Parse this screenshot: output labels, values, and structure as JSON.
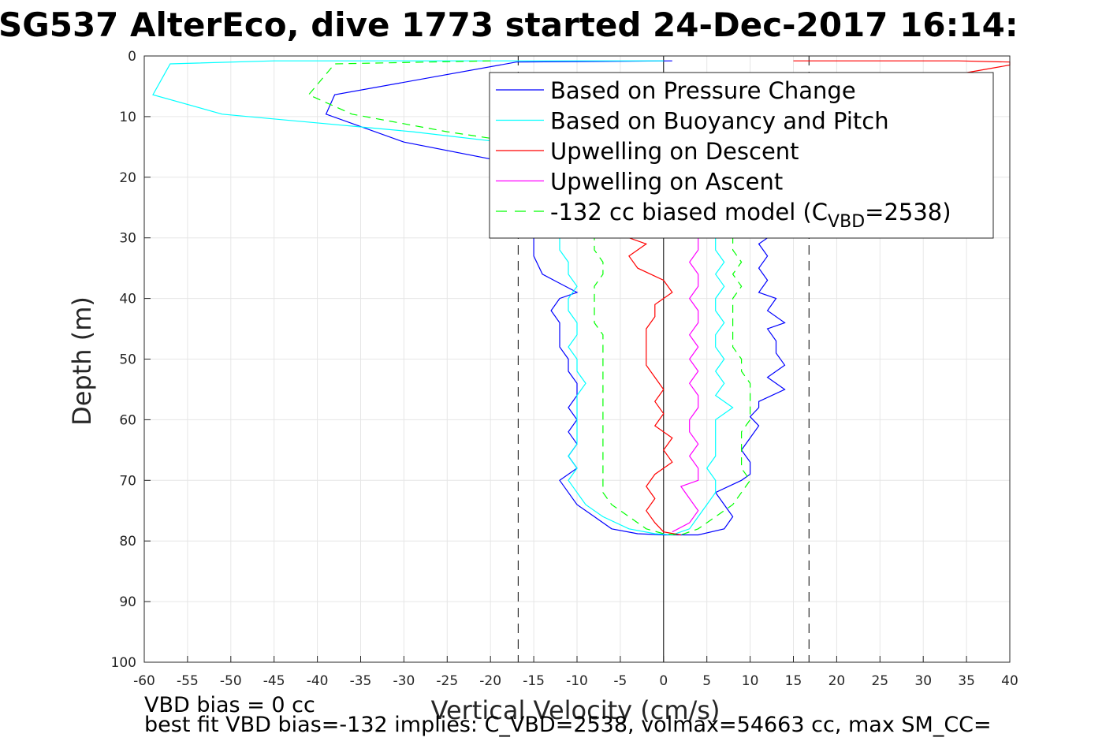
{
  "chart_data": {
    "type": "line",
    "title": "SG537 AlterEco, dive 1773 started 24-Dec-2017 16:14:",
    "xlabel": "Vertical Velocity (cm/s)",
    "ylabel": "Depth (m)",
    "xlim": [
      -60,
      40
    ],
    "ylim": [
      0,
      100
    ],
    "y_reversed": true,
    "grid": true,
    "legend_position": "top-right",
    "x_ticks": [
      "-60",
      "-55",
      "-50",
      "-45",
      "-40",
      "-35",
      "-30",
      "-25",
      "-20",
      "-15",
      "-10",
      "-5",
      "0",
      "5",
      "10",
      "15",
      "20",
      "25",
      "30",
      "35",
      "40"
    ],
    "y_ticks": [
      "0",
      "10",
      "20",
      "30",
      "40",
      "50",
      "60",
      "70",
      "80",
      "90",
      "100"
    ],
    "reference_lines": [
      {
        "axis": "x",
        "value": -16.8,
        "style": "dashed",
        "color": "#000000"
      },
      {
        "axis": "x",
        "value": 0,
        "style": "solid",
        "color": "#000000"
      },
      {
        "axis": "x",
        "value": 16.8,
        "style": "dashed",
        "color": "#000000"
      }
    ],
    "series": [
      {
        "name": "Based on Pressure Change",
        "color": "#0000ff",
        "dash": false,
        "points": [
          [
            1,
            0.8
          ],
          [
            -17,
            1
          ],
          [
            -38,
            6.4
          ],
          [
            -39,
            9.6
          ],
          [
            -30,
            14.2
          ],
          [
            -20,
            17
          ],
          [
            -17,
            22
          ],
          [
            -16,
            26
          ],
          [
            -15,
            30
          ],
          [
            -15,
            33
          ],
          [
            -14,
            36
          ],
          [
            -12,
            37.5
          ],
          [
            -10,
            39
          ],
          [
            -12,
            40
          ],
          [
            -13,
            42
          ],
          [
            -12,
            44
          ],
          [
            -12,
            46
          ],
          [
            -12,
            48
          ],
          [
            -11,
            50
          ],
          [
            -11,
            52
          ],
          [
            -10,
            54
          ],
          [
            -10,
            56
          ],
          [
            -11,
            58
          ],
          [
            -10,
            60
          ],
          [
            -11,
            62
          ],
          [
            -10,
            64
          ],
          [
            -11,
            66
          ],
          [
            -10,
            68
          ],
          [
            -12,
            70
          ],
          [
            -11,
            72
          ],
          [
            -10,
            74
          ],
          [
            -8,
            76
          ],
          [
            -6,
            78
          ],
          [
            -3,
            78.8
          ],
          [
            0,
            79
          ],
          [
            4,
            79
          ],
          [
            7,
            78
          ],
          [
            8,
            76
          ],
          [
            7,
            74
          ],
          [
            6,
            72
          ],
          [
            9,
            70
          ],
          [
            10,
            69
          ],
          [
            10,
            67
          ],
          [
            9,
            65
          ],
          [
            10,
            63
          ],
          [
            11,
            61
          ],
          [
            10,
            59.5
          ],
          [
            11,
            58
          ],
          [
            11,
            57
          ],
          [
            14,
            55
          ],
          [
            12,
            53
          ],
          [
            14,
            51
          ],
          [
            13,
            49
          ],
          [
            13,
            47
          ],
          [
            12,
            45
          ],
          [
            14,
            44
          ],
          [
            12,
            42
          ],
          [
            13,
            40
          ],
          [
            11,
            39
          ],
          [
            12,
            37
          ],
          [
            11,
            35
          ],
          [
            12,
            33
          ],
          [
            11,
            31
          ],
          [
            12,
            30
          ]
        ]
      },
      {
        "name": "Based on Buoyancy and Pitch",
        "color": "#00ffff",
        "dash": false,
        "points": [
          [
            0,
            0.8
          ],
          [
            -45,
            0.8
          ],
          [
            -57,
            1.3
          ],
          [
            -59,
            6.4
          ],
          [
            -51,
            9.6
          ],
          [
            -29,
            12.5
          ],
          [
            -20,
            14
          ],
          [
            -16,
            18
          ],
          [
            -14,
            22
          ],
          [
            -13,
            26
          ],
          [
            -12,
            30
          ],
          [
            -12,
            32
          ],
          [
            -11,
            34
          ],
          [
            -11,
            36
          ],
          [
            -10,
            38
          ],
          [
            -11,
            40
          ],
          [
            -11,
            42
          ],
          [
            -10,
            44
          ],
          [
            -10,
            46
          ],
          [
            -11,
            48
          ],
          [
            -10,
            50
          ],
          [
            -10,
            52
          ],
          [
            -9,
            54
          ],
          [
            -10,
            56
          ],
          [
            -10,
            58
          ],
          [
            -10,
            60
          ],
          [
            -10,
            62
          ],
          [
            -10,
            64
          ],
          [
            -11,
            66
          ],
          [
            -10,
            68
          ],
          [
            -11,
            70
          ],
          [
            -10,
            72
          ],
          [
            -9,
            74
          ],
          [
            -7,
            76
          ],
          [
            -4,
            78
          ],
          [
            -1,
            78.8
          ],
          [
            1,
            79
          ],
          [
            3,
            78
          ],
          [
            4,
            76
          ],
          [
            5,
            74
          ],
          [
            6,
            72
          ],
          [
            6,
            70
          ],
          [
            5,
            68
          ],
          [
            6,
            66
          ],
          [
            6,
            64
          ],
          [
            6,
            62
          ],
          [
            6,
            60
          ],
          [
            8,
            58
          ],
          [
            6,
            56
          ],
          [
            7,
            54
          ],
          [
            6,
            52
          ],
          [
            7,
            50
          ],
          [
            6,
            48
          ],
          [
            6,
            46
          ],
          [
            7,
            44
          ],
          [
            6,
            42
          ],
          [
            6,
            40
          ],
          [
            7,
            38
          ],
          [
            6,
            36
          ],
          [
            7,
            34
          ],
          [
            6,
            32
          ],
          [
            6,
            30
          ]
        ]
      },
      {
        "name": "Upwelling on Descent",
        "color": "#ff0000",
        "dash": false,
        "points": [
          [
            15,
            0.8
          ],
          [
            34,
            0.8
          ],
          [
            40,
            1
          ],
          [
            40,
            1.5
          ],
          [
            34,
            3
          ],
          [
            20,
            18
          ],
          [
            5,
            26
          ],
          [
            -4,
            30
          ],
          [
            -2,
            31
          ],
          [
            -4,
            33
          ],
          [
            -3,
            35
          ],
          [
            0,
            37
          ],
          [
            1,
            39
          ],
          [
            -1,
            41
          ],
          [
            -1,
            43
          ],
          [
            -2,
            45
          ],
          [
            -2,
            47
          ],
          [
            -2,
            49
          ],
          [
            -2,
            51
          ],
          [
            -1,
            53
          ],
          [
            0,
            55
          ],
          [
            -1,
            57
          ],
          [
            0,
            59
          ],
          [
            -1,
            61
          ],
          [
            1,
            63
          ],
          [
            0,
            65
          ],
          [
            1,
            67
          ],
          [
            -1,
            69
          ],
          [
            -2,
            71
          ],
          [
            -1,
            73
          ],
          [
            -2,
            75
          ],
          [
            -1,
            77
          ],
          [
            0,
            78.5
          ],
          [
            2,
            79
          ]
        ]
      },
      {
        "name": "Upwelling on Ascent",
        "color": "#ff00ff",
        "dash": false,
        "points": [
          [
            1,
            78.5
          ],
          [
            3,
            77
          ],
          [
            4,
            75
          ],
          [
            3,
            73
          ],
          [
            2,
            71
          ],
          [
            4,
            70
          ],
          [
            4,
            68
          ],
          [
            3,
            66
          ],
          [
            4,
            64
          ],
          [
            3,
            62
          ],
          [
            3,
            60
          ],
          [
            4,
            58
          ],
          [
            4,
            56
          ],
          [
            3,
            54
          ],
          [
            4,
            52
          ],
          [
            3,
            50
          ],
          [
            4,
            48
          ],
          [
            3,
            46
          ],
          [
            4,
            44
          ],
          [
            4,
            42
          ],
          [
            3,
            40
          ],
          [
            4,
            38
          ],
          [
            4,
            36
          ],
          [
            3,
            34
          ],
          [
            4,
            32
          ],
          [
            4,
            30
          ]
        ]
      },
      {
        "name": "-132 cc biased model (C_VBD=2538)",
        "color": "#00ff00",
        "dash": true,
        "points": [
          [
            -20,
            0.8
          ],
          [
            -38,
            1.3
          ],
          [
            -41,
            6.4
          ],
          [
            -36,
            9.6
          ],
          [
            -25,
            12.5
          ],
          [
            -18,
            14
          ],
          [
            -13,
            17
          ],
          [
            -11,
            20
          ],
          [
            -9,
            24
          ],
          [
            -8,
            28
          ],
          [
            -8,
            30
          ],
          [
            -8,
            32
          ],
          [
            -7,
            34
          ],
          [
            -7,
            36
          ],
          [
            -8,
            38
          ],
          [
            -8,
            40
          ],
          [
            -8,
            42
          ],
          [
            -8,
            44
          ],
          [
            -7,
            46
          ],
          [
            -7,
            48
          ],
          [
            -7,
            50
          ],
          [
            -7,
            52
          ],
          [
            -7,
            54
          ],
          [
            -7,
            56
          ],
          [
            -7,
            58
          ],
          [
            -7,
            60
          ],
          [
            -7,
            62
          ],
          [
            -7,
            64
          ],
          [
            -7,
            66
          ],
          [
            -7,
            68
          ],
          [
            -7,
            70
          ],
          [
            -7,
            72
          ],
          [
            -6,
            74
          ],
          [
            -4,
            76
          ],
          [
            -2,
            78
          ],
          [
            0,
            78.8
          ],
          [
            2,
            79
          ],
          [
            4,
            78
          ],
          [
            6,
            76
          ],
          [
            8,
            74
          ],
          [
            9,
            72
          ],
          [
            10,
            70
          ],
          [
            9,
            68
          ],
          [
            9,
            66
          ],
          [
            9,
            64
          ],
          [
            9,
            62
          ],
          [
            10,
            60
          ],
          [
            10,
            58
          ],
          [
            10,
            56
          ],
          [
            10,
            54
          ],
          [
            9,
            52
          ],
          [
            9,
            50
          ],
          [
            8,
            48
          ],
          [
            8,
            46
          ],
          [
            8,
            44
          ],
          [
            8,
            42
          ],
          [
            8,
            40
          ],
          [
            9,
            38
          ],
          [
            8,
            36
          ],
          [
            9,
            34
          ],
          [
            8,
            32
          ],
          [
            8,
            30
          ]
        ]
      }
    ]
  },
  "legend": {
    "entries": [
      {
        "label": "Based on Pressure Change",
        "color": "#0000ff",
        "dash": false
      },
      {
        "label": "Based on Buoyancy and Pitch",
        "color": "#00ffff",
        "dash": false
      },
      {
        "label": "Upwelling on Descent",
        "color": "#ff0000",
        "dash": false
      },
      {
        "label": "Upwelling on Ascent",
        "color": "#ff00ff",
        "dash": false
      },
      {
        "label": "-132 cc biased model (C",
        "sub": "VBD",
        "suffix": "=2538)",
        "color": "#00ff00",
        "dash": true
      }
    ]
  },
  "notes": {
    "line1": "VBD bias = 0 cc",
    "line2": "best fit VBD bias=-132 implies: C_VBD=2538, volmax=54663 cc, max SM_CC="
  }
}
